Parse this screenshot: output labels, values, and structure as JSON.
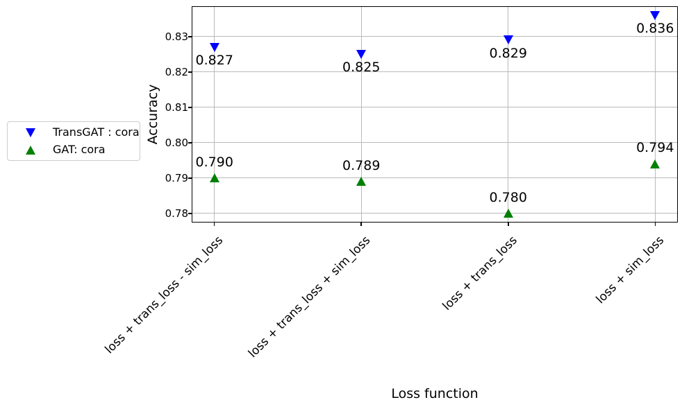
{
  "chart_data": {
    "type": "scatter",
    "xlabel": "Loss function",
    "ylabel": "Accuracy",
    "categories": [
      "loss + trans_loss - sim_loss",
      "loss + trans_loss + sim_loss",
      "loss + trans_loss",
      "loss + sim_loss"
    ],
    "series": [
      {
        "name": "TransGAT : cora",
        "marker": "triangle-down",
        "color": "#0000ff",
        "values": [
          0.827,
          0.825,
          0.829,
          0.836
        ],
        "point_labels": [
          "0.827",
          "0.825",
          "0.829",
          "0.836"
        ],
        "label_position": "below"
      },
      {
        "name": "GAT: cora",
        "marker": "triangle-up",
        "color": "#008000",
        "values": [
          0.79,
          0.789,
          0.78,
          0.794
        ],
        "point_labels": [
          "0.790",
          "0.789",
          "0.780",
          "0.794"
        ],
        "label_position": "above"
      }
    ],
    "ytick_labels": [
      "0.83",
      "0.82",
      "0.81",
      "0.80",
      "0.79",
      "0.78"
    ],
    "ylim": [
      0.7776,
      0.8384
    ],
    "xlim": [
      -0.15,
      3.15
    ],
    "grid": true,
    "grid_color": "#b9b9b9",
    "legend_position": "outside-left"
  }
}
